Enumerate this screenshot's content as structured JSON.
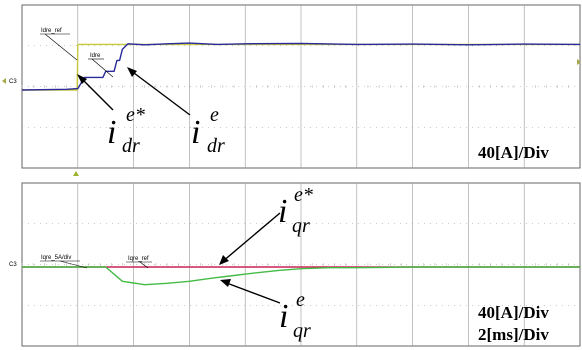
{
  "chart_data": [
    {
      "type": "line",
      "panel": "top",
      "scale_label": "40[A]/Div",
      "channel_label": "C3",
      "series": [
        {
          "name": "Idre_ref",
          "color": "#c8c83c",
          "x": [
            0,
            0.99,
            1.0,
            10.0
          ],
          "values": [
            0.0,
            0.0,
            1.34,
            1.34
          ]
        },
        {
          "name": "Idre",
          "color": "#2a2a9a",
          "x": [
            0,
            0.8,
            1.0,
            1.12,
            1.45,
            1.5,
            1.65,
            1.7,
            1.75,
            1.8,
            1.9,
            2.2,
            2.6,
            3.0,
            3.5,
            4.0,
            5.0,
            6.0,
            7.0,
            8.0,
            9.0,
            10.0
          ],
          "values": [
            0.0,
            0.02,
            0.04,
            0.37,
            0.37,
            0.55,
            0.55,
            0.87,
            0.87,
            1.2,
            1.36,
            1.33,
            1.36,
            1.38,
            1.34,
            1.36,
            1.37,
            1.34,
            1.35,
            1.33,
            1.35,
            1.34
          ]
        }
      ],
      "annotations": [
        {
          "label_main": "i",
          "label_sup": "e*",
          "label_sub": "dr"
        },
        {
          "label_main": "i",
          "label_sup": "e",
          "label_sub": "dr"
        }
      ]
    },
    {
      "type": "line",
      "panel": "bottom",
      "scale_label": "40[A]/Div",
      "time_label": "2[ms]/Div",
      "channel_label": "C3",
      "series": [
        {
          "name": "Iqre_ref",
          "color": "#cc2255",
          "x": [
            0,
            10.0
          ],
          "values": [
            0.0,
            0.0
          ]
        },
        {
          "name": "Iqre_5A/div",
          "color": "#44bb44",
          "x": [
            0,
            1.5,
            1.8,
            2.2,
            2.6,
            3.0,
            3.4,
            3.8,
            4.2,
            4.6,
            5.0,
            5.5,
            6.0,
            7.0,
            8.0,
            9.0,
            10.0
          ],
          "values": [
            0.0,
            0.0,
            -0.42,
            -0.52,
            -0.48,
            -0.42,
            -0.33,
            -0.25,
            -0.17,
            -0.1,
            -0.05,
            -0.02,
            -0.02,
            0.0,
            0.0,
            0.0,
            0.0
          ]
        }
      ],
      "annotations": [
        {
          "label_main": "i",
          "label_sup": "e*",
          "label_sub": "qr"
        },
        {
          "label_main": "i",
          "label_sup": "e",
          "label_sub": "qr"
        }
      ]
    }
  ]
}
